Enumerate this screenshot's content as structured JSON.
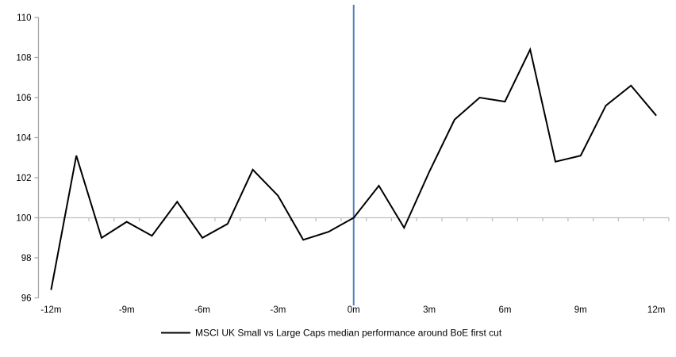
{
  "chart": {
    "legend": {
      "label": "MSCI UK Small vs Large Caps median performance around BoE first cut"
    },
    "colors": {
      "series": "#000000",
      "event_line": "#4f81bd",
      "value_axis": "#a6a6a6",
      "category_axis": "#bfbfbf",
      "label_text": "#000000"
    }
  },
  "chart_data": {
    "type": "line",
    "title": "",
    "xlabel": "",
    "ylabel": "",
    "x": [
      -12,
      -11,
      -10,
      -9,
      -8,
      -7,
      -6,
      -5,
      -4,
      -3,
      -2,
      -1,
      0,
      1,
      2,
      3,
      4,
      5,
      6,
      7,
      8,
      9,
      10,
      11,
      12
    ],
    "series": [
      {
        "name": "MSCI UK Small vs Large Caps median performance around BoE first cut",
        "color": "#000000",
        "values": [
          96.4,
          103.1,
          99.0,
          99.8,
          99.1,
          100.8,
          99.0,
          99.7,
          102.4,
          101.1,
          98.9,
          99.3,
          100.0,
          101.6,
          99.5,
          102.3,
          104.9,
          106.0,
          105.8,
          108.4,
          102.8,
          103.1,
          105.6,
          106.6,
          105.1
        ]
      }
    ],
    "x_tick_labels": [
      "-12m",
      "-9m",
      "-6m",
      "-3m",
      "0m",
      "3m",
      "6m",
      "9m",
      "12m"
    ],
    "x_tick_months": [
      -12,
      -9,
      -6,
      -3,
      0,
      3,
      6,
      9,
      12
    ],
    "y_ticks": [
      96,
      98,
      100,
      102,
      104,
      106,
      108,
      110
    ],
    "ylim": [
      96,
      110
    ],
    "baseline": 100,
    "grid": "single horizontal category axis line at y=100, monthly minor ticks below it",
    "legend_position": "bottom-center",
    "annotations": [
      {
        "type": "vline",
        "x": 0,
        "color": "#4f81bd"
      }
    ]
  }
}
